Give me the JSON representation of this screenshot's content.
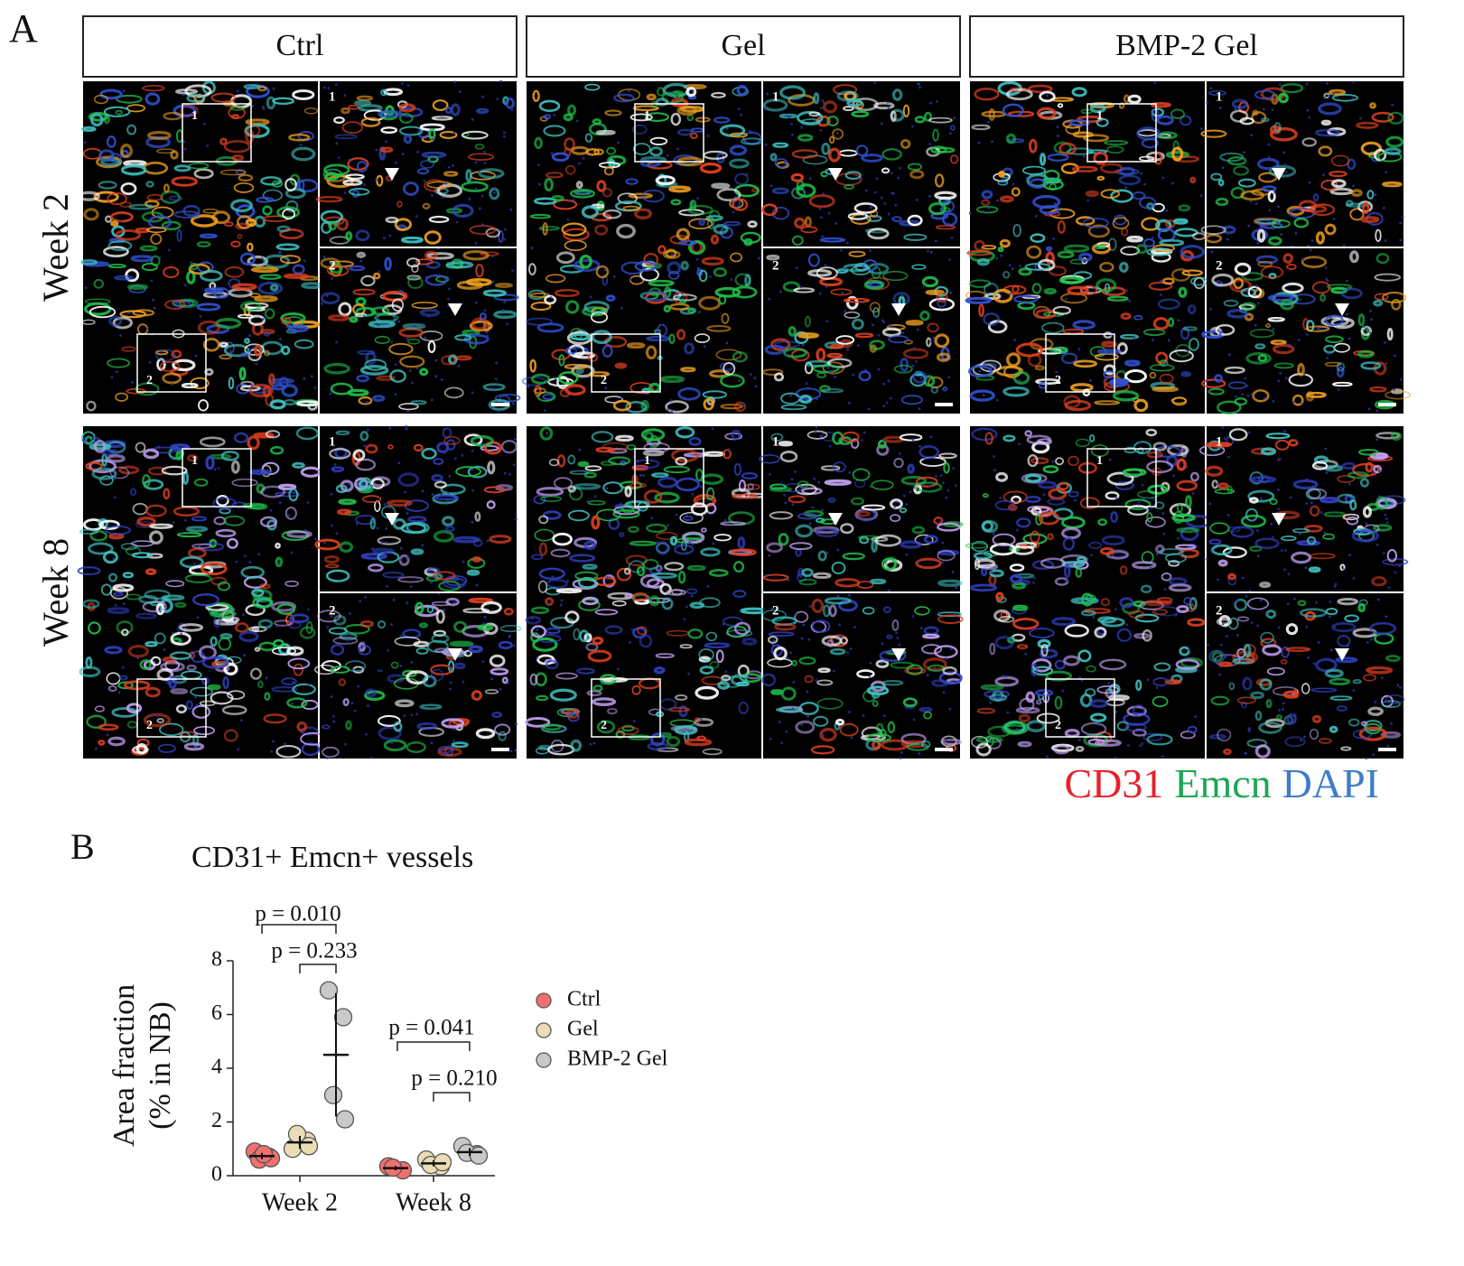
{
  "panel_a": {
    "label": "A",
    "columns": [
      "Ctrl",
      "Gel",
      "BMP-2 Gel"
    ],
    "rows": [
      "Week 2",
      "Week 8"
    ],
    "inset_labels": [
      "1",
      "2"
    ],
    "stains": [
      {
        "name": "CD31",
        "color": "#e8202a"
      },
      {
        "name": "Emcn",
        "color": "#1ea653"
      },
      {
        "name": "DAPI",
        "color": "#3d7dc9"
      }
    ]
  },
  "chart_data": {
    "type": "scatter",
    "panel_label": "B",
    "title": "CD31+ Emcn+ vessels",
    "y_label": [
      "Area fraction",
      "(% in NB)"
    ],
    "categories": [
      "Week 2",
      "Week 8"
    ],
    "series": [
      {
        "name": "Ctrl",
        "color": "#f07070",
        "values": [
          [
            0.9,
            0.7,
            0.6,
            0.65,
            0.8
          ],
          [
            0.35,
            0.2,
            0.3
          ]
        ],
        "mean": [
          0.73,
          0.28
        ],
        "sd": [
          0.12,
          0.08
        ]
      },
      {
        "name": "Gel",
        "color": "#eadcb4",
        "values": [
          [
            1.0,
            1.3,
            1.55,
            1.1
          ],
          [
            0.6,
            0.35,
            0.4,
            0.5
          ]
        ],
        "mean": [
          1.24,
          0.46
        ],
        "sd": [
          0.24,
          0.11
        ]
      },
      {
        "name": "BMP-2 Gel",
        "color": "#c9c9c9",
        "values": [
          [
            6.9,
            5.9,
            3.0,
            2.1
          ],
          [
            1.1,
            0.8,
            0.85,
            0.75
          ]
        ],
        "mean": [
          4.5,
          0.88
        ],
        "sd": [
          2.3,
          0.15
        ]
      }
    ],
    "annotations": [
      "p = 0.010",
      "p = 0.233",
      "p = 0.041",
      "p = 0.210"
    ],
    "ylim": [
      0,
      8
    ],
    "yticks": [
      0,
      2,
      4,
      6,
      8
    ],
    "legend": "right"
  }
}
